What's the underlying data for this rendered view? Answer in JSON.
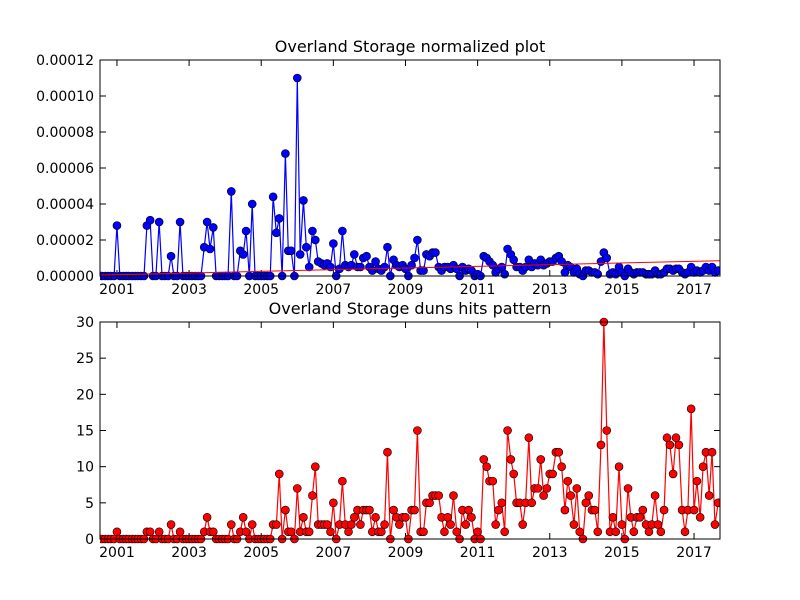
{
  "chart_data": [
    {
      "type": "line",
      "title": "Overland Storage normalized plot",
      "color": "blue",
      "x": [
        2000.5,
        2000.58,
        2000.67,
        2000.75,
        2000.83,
        2000.92,
        2001,
        2001.08,
        2001.17,
        2001.25,
        2001.33,
        2001.42,
        2001.5,
        2001.58,
        2001.67,
        2001.75,
        2001.83,
        2001.92,
        2002,
        2002.08,
        2002.17,
        2002.25,
        2002.33,
        2002.42,
        2002.5,
        2002.58,
        2002.67,
        2002.75,
        2002.83,
        2002.92,
        2003,
        2003.08,
        2003.17,
        2003.25,
        2003.33,
        2003.42,
        2003.5,
        2003.58,
        2003.67,
        2003.75,
        2003.83,
        2003.92,
        2004,
        2004.08,
        2004.17,
        2004.25,
        2004.33,
        2004.42,
        2004.5,
        2004.58,
        2004.67,
        2004.75,
        2004.83,
        2004.92,
        2005,
        2005.08,
        2005.17,
        2005.25,
        2005.33,
        2005.42,
        2005.5,
        2005.58,
        2005.67,
        2005.75,
        2005.83,
        2005.92,
        2006,
        2006.08,
        2006.17,
        2006.25,
        2006.33,
        2006.42,
        2006.5,
        2006.58,
        2006.67,
        2006.75,
        2006.83,
        2006.92,
        2007,
        2007.08,
        2007.17,
        2007.25,
        2007.33,
        2007.42,
        2007.5,
        2007.58,
        2007.67,
        2007.75,
        2007.83,
        2007.92,
        2008,
        2008.08,
        2008.17,
        2008.25,
        2008.33,
        2008.42,
        2008.5,
        2008.58,
        2008.67,
        2008.75,
        2008.83,
        2008.92,
        2009,
        2009.08,
        2009.17,
        2009.25,
        2009.33,
        2009.42,
        2009.5,
        2009.58,
        2009.67,
        2009.75,
        2009.83,
        2009.92,
        2010,
        2010.08,
        2010.17,
        2010.25,
        2010.33,
        2010.42,
        2010.5,
        2010.58,
        2010.67,
        2010.75,
        2010.83,
        2010.92,
        2011,
        2011.08,
        2011.17,
        2011.25,
        2011.33,
        2011.42,
        2011.5,
        2011.58,
        2011.67,
        2011.75,
        2011.83,
        2011.92,
        2012,
        2012.08,
        2012.17,
        2012.25,
        2012.33,
        2012.42,
        2012.5,
        2012.58,
        2012.67,
        2012.75,
        2012.83,
        2012.92,
        2013,
        2013.08,
        2013.17,
        2013.25,
        2013.33,
        2013.42,
        2013.5,
        2013.58,
        2013.67,
        2013.75,
        2013.83,
        2013.92,
        2014,
        2014.08,
        2014.17,
        2014.25,
        2014.33,
        2014.42,
        2014.5,
        2014.58,
        2014.67,
        2014.75,
        2014.83,
        2014.92,
        2015,
        2015.08,
        2015.17,
        2015.25,
        2015.33,
        2015.42,
        2015.5,
        2015.58,
        2015.67,
        2015.75,
        2015.83,
        2015.92,
        2016,
        2016.08,
        2016.17,
        2016.25,
        2016.33,
        2016.42,
        2016.5,
        2016.58,
        2016.67,
        2016.75,
        2016.83,
        2016.92,
        2017,
        2017.08,
        2017.17,
        2017.25,
        2017.33,
        2017.42,
        2017.5,
        2017.58,
        2017.67
      ],
      "values": [
        0,
        0,
        0,
        0,
        0,
        0,
        2.8e-05,
        0,
        0,
        0,
        0,
        0,
        0,
        0,
        0,
        0,
        2.8e-05,
        3.1e-05,
        0,
        0,
        3e-05,
        0,
        0,
        0,
        1.1e-05,
        0,
        0,
        3e-05,
        0,
        0,
        0,
        0,
        0,
        0,
        0,
        1.6e-05,
        3e-05,
        1.5e-05,
        2.7e-05,
        0,
        0,
        0,
        0,
        0,
        4.7e-05,
        0,
        0,
        1.4e-05,
        1.2e-05,
        2.5e-05,
        0,
        4e-05,
        0,
        0,
        0,
        0,
        0,
        0,
        4.4e-05,
        2.4e-05,
        3.2e-05,
        0,
        6.8e-05,
        1.4e-05,
        1.4e-05,
        0,
        0.00011,
        1.2e-05,
        4.2e-05,
        1.6e-05,
        5e-06,
        2.5e-05,
        2e-05,
        8e-06,
        7e-06,
        6e-06,
        7e-06,
        5e-06,
        1.8e-05,
        0,
        4e-06,
        2.5e-05,
        6e-06,
        5e-06,
        6e-06,
        1.2e-05,
        5e-06,
        5e-06,
        1e-05,
        1.1e-05,
        5e-06,
        3e-06,
        8e-06,
        4e-06,
        3e-06,
        5e-06,
        1.6e-05,
        0,
        9e-06,
        6e-06,
        5e-06,
        6e-06,
        4e-06,
        0,
        6e-06,
        1e-05,
        2e-05,
        3e-06,
        3e-06,
        1.2e-05,
        1.1e-05,
        1.3e-05,
        1.3e-05,
        5e-06,
        3e-06,
        5e-06,
        5e-06,
        4e-06,
        6e-06,
        4e-06,
        0,
        5e-06,
        3e-06,
        4e-06,
        3e-06,
        0,
        1e-06,
        0,
        1.1e-05,
        1e-05,
        8e-06,
        6e-06,
        2e-06,
        4e-06,
        5e-06,
        1e-06,
        1.5e-05,
        1.2e-05,
        9e-06,
        5e-06,
        5e-06,
        3e-06,
        5e-06,
        9e-06,
        5e-06,
        7e-06,
        6e-06,
        9e-06,
        6e-06,
        7e-06,
        8e-06,
        8e-06,
        1e-05,
        1.1e-05,
        8e-06,
        2e-06,
        6e-06,
        5e-06,
        2e-06,
        4e-06,
        1e-06,
        0,
        3e-06,
        3e-06,
        2e-06,
        2e-06,
        1e-06,
        8e-06,
        1.3e-05,
        1e-05,
        1e-06,
        2e-06,
        1e-06,
        5e-06,
        2e-06,
        0,
        4e-06,
        2e-06,
        1e-06,
        2e-06,
        2e-06,
        2e-06,
        1e-06,
        1e-06,
        1e-06,
        3e-06,
        1e-06,
        1e-06,
        2e-06,
        4e-06,
        4e-06,
        3e-06,
        4e-06,
        4e-06,
        2e-06,
        1e-06,
        2e-06,
        5e-06,
        2e-06,
        3e-06,
        2e-06,
        3e-06,
        5e-06,
        3e-06,
        5e-06,
        2e-06,
        3e-06
      ],
      "trend": {
        "x": [
          2000.53,
          2017.72
        ],
        "values": [
          5e-07,
          8.5e-06
        ],
        "color": "red"
      },
      "xlim": [
        2000.53,
        2017.72
      ],
      "xticks": [
        2001,
        2003,
        2005,
        2007,
        2009,
        2011,
        2013,
        2015,
        2017
      ],
      "ylim": [
        0,
        0.00012
      ],
      "yticks": [
        {
          "value": 0,
          "label": "0.00000"
        },
        {
          "value": 2e-05,
          "label": "0.00002"
        },
        {
          "value": 4e-05,
          "label": "0.00004"
        },
        {
          "value": 6e-05,
          "label": "0.00006"
        },
        {
          "value": 8e-05,
          "label": "0.00008"
        },
        {
          "value": 0.0001,
          "label": "0.00010"
        },
        {
          "value": 0.00012,
          "label": "0.00012"
        }
      ],
      "grid": false
    },
    {
      "type": "line",
      "title": "Overland Storage duns hits pattern",
      "color": "red",
      "x": [
        2000.5,
        2000.58,
        2000.67,
        2000.75,
        2000.83,
        2000.92,
        2001,
        2001.08,
        2001.17,
        2001.25,
        2001.33,
        2001.42,
        2001.5,
        2001.58,
        2001.67,
        2001.75,
        2001.83,
        2001.92,
        2002,
        2002.08,
        2002.17,
        2002.25,
        2002.33,
        2002.42,
        2002.5,
        2002.58,
        2002.67,
        2002.75,
        2002.83,
        2002.92,
        2003,
        2003.08,
        2003.17,
        2003.25,
        2003.33,
        2003.42,
        2003.5,
        2003.58,
        2003.67,
        2003.75,
        2003.83,
        2003.92,
        2004,
        2004.08,
        2004.17,
        2004.25,
        2004.33,
        2004.42,
        2004.5,
        2004.58,
        2004.67,
        2004.75,
        2004.83,
        2004.92,
        2005,
        2005.08,
        2005.17,
        2005.25,
        2005.33,
        2005.42,
        2005.5,
        2005.58,
        2005.67,
        2005.75,
        2005.83,
        2005.92,
        2006,
        2006.08,
        2006.17,
        2006.25,
        2006.33,
        2006.42,
        2006.5,
        2006.58,
        2006.67,
        2006.75,
        2006.83,
        2006.92,
        2007,
        2007.08,
        2007.17,
        2007.25,
        2007.33,
        2007.42,
        2007.5,
        2007.58,
        2007.67,
        2007.75,
        2007.83,
        2007.92,
        2008,
        2008.08,
        2008.17,
        2008.25,
        2008.33,
        2008.42,
        2008.5,
        2008.58,
        2008.67,
        2008.75,
        2008.83,
        2008.92,
        2009,
        2009.08,
        2009.17,
        2009.25,
        2009.33,
        2009.42,
        2009.5,
        2009.58,
        2009.67,
        2009.75,
        2009.83,
        2009.92,
        2010,
        2010.08,
        2010.17,
        2010.25,
        2010.33,
        2010.42,
        2010.5,
        2010.58,
        2010.67,
        2010.75,
        2010.83,
        2010.92,
        2011,
        2011.08,
        2011.17,
        2011.25,
        2011.33,
        2011.42,
        2011.5,
        2011.58,
        2011.67,
        2011.75,
        2011.83,
        2011.92,
        2012,
        2012.08,
        2012.17,
        2012.25,
        2012.33,
        2012.42,
        2012.5,
        2012.58,
        2012.67,
        2012.75,
        2012.83,
        2012.92,
        2013,
        2013.08,
        2013.17,
        2013.25,
        2013.33,
        2013.42,
        2013.5,
        2013.58,
        2013.67,
        2013.75,
        2013.83,
        2013.92,
        2014,
        2014.08,
        2014.17,
        2014.25,
        2014.33,
        2014.42,
        2014.5,
        2014.58,
        2014.67,
        2014.75,
        2014.83,
        2014.92,
        2015,
        2015.08,
        2015.17,
        2015.25,
        2015.33,
        2015.42,
        2015.5,
        2015.58,
        2015.67,
        2015.75,
        2015.83,
        2015.92,
        2016,
        2016.08,
        2016.17,
        2016.25,
        2016.33,
        2016.42,
        2016.5,
        2016.58,
        2016.67,
        2016.75,
        2016.83,
        2016.92,
        2017,
        2017.08,
        2017.17,
        2017.25,
        2017.33,
        2017.42,
        2017.5,
        2017.58,
        2017.67
      ],
      "values": [
        0,
        0,
        0,
        0,
        0,
        0,
        1,
        0,
        0,
        0,
        0,
        0,
        0,
        0,
        0,
        0,
        1,
        1,
        0,
        0,
        1,
        0,
        0,
        0,
        2,
        0,
        0,
        1,
        0,
        0,
        0,
        0,
        0,
        0,
        0,
        1,
        3,
        1,
        1,
        0,
        0,
        0,
        0,
        0,
        2,
        0,
        0,
        1,
        3,
        1,
        0,
        2,
        0,
        0,
        0,
        0,
        0,
        0,
        2,
        2,
        9,
        0,
        4,
        1,
        1,
        0,
        7,
        1,
        3,
        1,
        1,
        6,
        10,
        2,
        2,
        2,
        2,
        1,
        5,
        0,
        2,
        8,
        2,
        1,
        2,
        3,
        4,
        2,
        4,
        4,
        4,
        1,
        3,
        1,
        1,
        2,
        12,
        0,
        4,
        3,
        2,
        3,
        3,
        0,
        4,
        4,
        15,
        1,
        1,
        5,
        5,
        6,
        6,
        6,
        3,
        1,
        3,
        2,
        6,
        1,
        0,
        4,
        2,
        4,
        3,
        0,
        1,
        0,
        11,
        10,
        8,
        8,
        2,
        4,
        5,
        1,
        15,
        11,
        9,
        5,
        5,
        2,
        5,
        14,
        5,
        7,
        7,
        11,
        6,
        7,
        9,
        9,
        12,
        12,
        10,
        4,
        8,
        6,
        2,
        7,
        1,
        0,
        5,
        6,
        4,
        4,
        1,
        13,
        30,
        15,
        1,
        3,
        1,
        10,
        2,
        0,
        7,
        3,
        1,
        3,
        3,
        4,
        2,
        1,
        2,
        6,
        2,
        1,
        4,
        14,
        13,
        9,
        14,
        13,
        4,
        1,
        4,
        18,
        4,
        8,
        3,
        10,
        12,
        6,
        12,
        2,
        5
      ],
      "xlim": [
        2000.53,
        2017.72
      ],
      "xticks": [
        2001,
        2003,
        2005,
        2007,
        2009,
        2011,
        2013,
        2015,
        2017
      ],
      "ylim": [
        0,
        30
      ],
      "yticks": [
        0,
        5,
        10,
        15,
        20,
        25,
        30
      ],
      "grid": false
    }
  ]
}
